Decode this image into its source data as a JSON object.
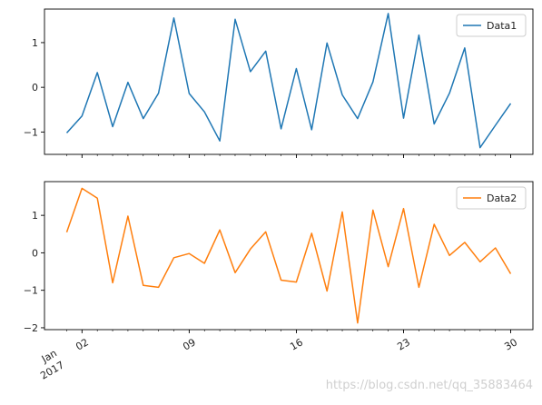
{
  "chart_data": [
    {
      "type": "line",
      "series": [
        {
          "name": "Data1",
          "color": "#1f77b4",
          "values": [
            -1.02,
            -0.64,
            0.33,
            -0.88,
            0.11,
            -0.7,
            -0.13,
            1.55,
            -0.14,
            -0.55,
            -1.2,
            1.52,
            0.35,
            0.81,
            -0.93,
            0.42,
            -0.95,
            0.99,
            -0.17,
            -0.7,
            0.12,
            1.65,
            -0.69,
            1.17,
            -0.82,
            -0.13,
            0.88,
            -1.35,
            -0.85,
            -0.36
          ]
        }
      ],
      "x": [
        "2017-01-01",
        "2017-01-02",
        "2017-01-03",
        "2017-01-04",
        "2017-01-05",
        "2017-01-06",
        "2017-01-07",
        "2017-01-08",
        "2017-01-09",
        "2017-01-10",
        "2017-01-11",
        "2017-01-12",
        "2017-01-13",
        "2017-01-14",
        "2017-01-15",
        "2017-01-16",
        "2017-01-17",
        "2017-01-18",
        "2017-01-19",
        "2017-01-20",
        "2017-01-21",
        "2017-01-22",
        "2017-01-23",
        "2017-01-24",
        "2017-01-25",
        "2017-01-26",
        "2017-01-27",
        "2017-01-28",
        "2017-01-29",
        "2017-01-30"
      ],
      "ylim": [
        -1.5,
        1.75
      ],
      "yticks": [
        "−1",
        "0",
        "1"
      ],
      "ytick_values": [
        -1,
        0,
        1
      ],
      "legend": "top-right",
      "grid": false
    },
    {
      "type": "line",
      "series": [
        {
          "name": "Data2",
          "color": "#ff7f0e",
          "values": [
            0.55,
            1.72,
            1.46,
            -0.8,
            0.98,
            -0.87,
            -0.92,
            -0.13,
            -0.02,
            -0.28,
            0.61,
            -0.53,
            0.1,
            0.56,
            -0.73,
            -0.78,
            0.52,
            -1.02,
            1.09,
            -1.87,
            1.14,
            -0.37,
            1.18,
            -0.92,
            0.76,
            -0.07,
            0.28,
            -0.24,
            0.13,
            -0.56
          ]
        }
      ],
      "x": [
        "2017-01-01",
        "2017-01-02",
        "2017-01-03",
        "2017-01-04",
        "2017-01-05",
        "2017-01-06",
        "2017-01-07",
        "2017-01-08",
        "2017-01-09",
        "2017-01-10",
        "2017-01-11",
        "2017-01-12",
        "2017-01-13",
        "2017-01-14",
        "2017-01-15",
        "2017-01-16",
        "2017-01-17",
        "2017-01-18",
        "2017-01-19",
        "2017-01-20",
        "2017-01-21",
        "2017-01-22",
        "2017-01-23",
        "2017-01-24",
        "2017-01-25",
        "2017-01-26",
        "2017-01-27",
        "2017-01-28",
        "2017-01-29",
        "2017-01-30"
      ],
      "ylim": [
        -2.05,
        1.9
      ],
      "yticks": [
        "−2",
        "−1",
        "0",
        "1"
      ],
      "ytick_values": [
        -2,
        -1,
        0,
        1
      ],
      "legend": "top-right",
      "grid": false
    }
  ],
  "xaxis": {
    "tick_dates": [
      "2017-01-02",
      "2017-01-09",
      "2017-01-16",
      "2017-01-23",
      "2017-01-30"
    ],
    "tick_labels": [
      "02",
      "09",
      "16",
      "23",
      "30"
    ],
    "first_label_line1": "Jan",
    "first_label_line2": "2017"
  },
  "watermark": "https://blog.csdn.net/qq_35883464"
}
